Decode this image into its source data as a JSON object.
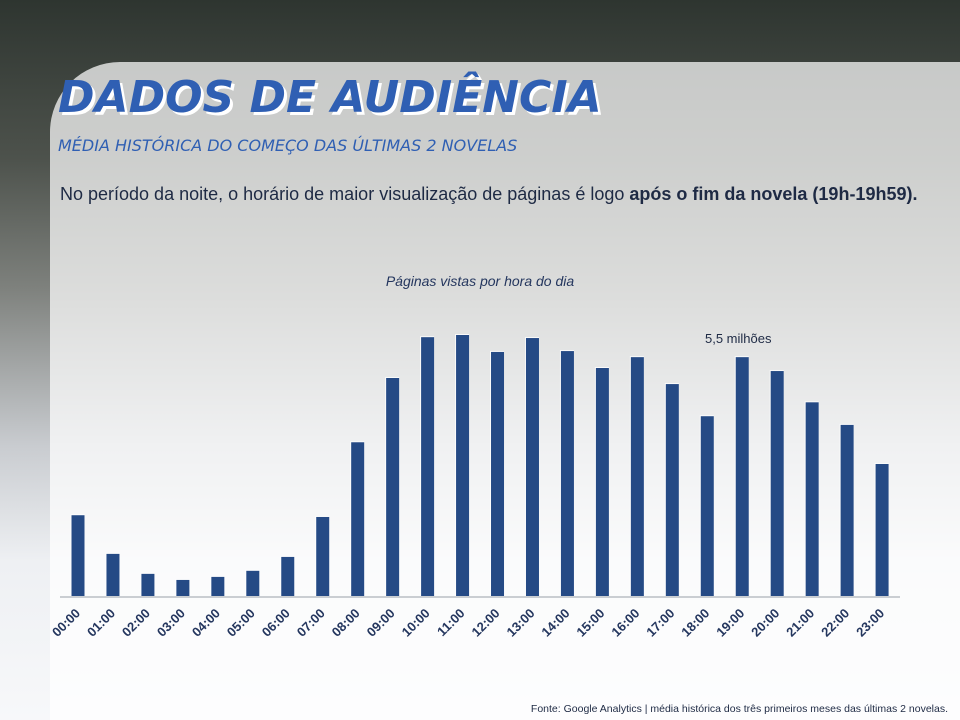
{
  "header": {
    "title": "DADOS DE AUDIÊNCIA",
    "subtitle": "MÉDIA HISTÓRICA DO COMEÇO DAS ÚLTIMAS 2 NOVELAS",
    "text": "No período da noite, o horário de maior visualização de páginas é logo",
    "text_bold": "após o fim da novela (19h-19h59)."
  },
  "chart_data": {
    "type": "bar",
    "title": "Páginas vistas por hora do dia",
    "categories": [
      "00:00",
      "01:00",
      "02:00",
      "03:00",
      "04:00",
      "05:00",
      "06:00",
      "07:00",
      "08:00",
      "09:00",
      "10:00",
      "11:00",
      "12:00",
      "13:00",
      "14:00",
      "15:00",
      "16:00",
      "17:00",
      "18:00",
      "19:00",
      "20:00",
      "21:00",
      "22:00",
      "23:00"
    ],
    "values": [
      1.86,
      0.97,
      0.51,
      0.37,
      0.44,
      0.58,
      0.9,
      1.82,
      3.54,
      5.02,
      5.96,
      6.01,
      5.62,
      5.94,
      5.64,
      5.25,
      5.5,
      4.88,
      4.14,
      5.5,
      5.18,
      4.46,
      3.94,
      3.04
    ],
    "value_labels": [
      null,
      null,
      null,
      null,
      null,
      null,
      null,
      null,
      null,
      null,
      null,
      null,
      null,
      null,
      null,
      null,
      null,
      null,
      null,
      "5,5 milhões",
      null,
      null,
      null,
      null
    ],
    "color": "#254a85"
  },
  "source": "Fonte: Google Analytics | média histórica dos três primeiros meses das últimas 2 novelas."
}
